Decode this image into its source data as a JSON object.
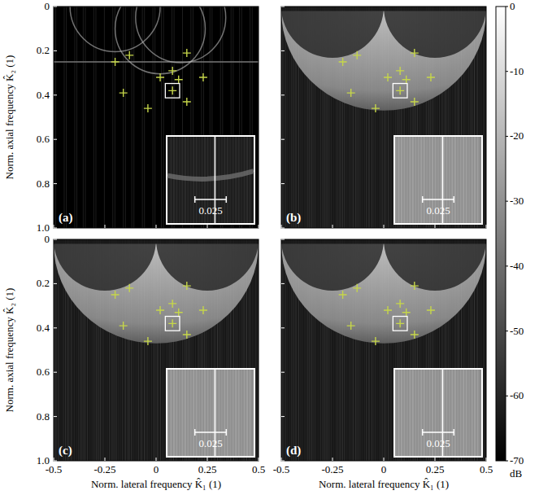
{
  "chart_data": [
    {
      "type": "scatter",
      "panel_label": "(a)",
      "y_label": "Norm. axial frequency K̂₂ (1)",
      "x": [
        -0.2,
        -0.13,
        -0.16,
        -0.04,
        0.02,
        0.08,
        0.08,
        0.15,
        0.15,
        0.23,
        0.11
      ],
      "y": [
        0.25,
        0.22,
        0.39,
        0.46,
        0.32,
        0.29,
        0.38,
        0.21,
        0.43,
        0.32,
        0.33
      ],
      "color": "#c6d64a",
      "marker": "plus",
      "xlim": [
        -0.5,
        0.5
      ],
      "ylim": [
        1,
        0
      ],
      "xticks": [
        -0.5,
        -0.25,
        0,
        0.25,
        0.5
      ],
      "yticks": [
        0,
        0.2,
        0.4,
        0.6,
        0.8,
        {
          "value": 1,
          "label": "1.0"
        }
      ],
      "tick_labels": "y",
      "inset": {
        "center": [
          0.08,
          0.38
        ],
        "width": 0.07,
        "scalebar": 0.025
      }
    },
    {
      "type": "scatter",
      "panel_label": "(b)",
      "x": [
        -0.2,
        -0.13,
        -0.16,
        -0.04,
        0.02,
        0.08,
        0.08,
        0.15,
        0.15,
        0.23,
        0.11
      ],
      "y": [
        0.25,
        0.22,
        0.39,
        0.46,
        0.32,
        0.29,
        0.38,
        0.21,
        0.43,
        0.32,
        0.33
      ],
      "color": "#c6d64a",
      "marker": "plus",
      "xlim": [
        -0.5,
        0.5
      ],
      "ylim": [
        1,
        0
      ],
      "xticks": [
        -0.5,
        -0.25,
        0,
        0.25,
        0.5
      ],
      "yticks": [
        0,
        0.2,
        0.4,
        0.6,
        0.8,
        {
          "value": 1,
          "label": "1.0"
        }
      ],
      "tick_labels": false,
      "inset": {
        "center": [
          0.08,
          0.38
        ],
        "width": 0.07,
        "scalebar": 0.025
      }
    },
    {
      "type": "scatter",
      "panel_label": "(c)",
      "x_label": "Norm. lateral frequency K̂₁ (1)",
      "y_label": "Norm. axial frequency K̂₂ (1)",
      "x": [
        -0.2,
        -0.13,
        -0.16,
        -0.04,
        0.02,
        0.08,
        0.08,
        0.15,
        0.15,
        0.23,
        0.11
      ],
      "y": [
        0.25,
        0.22,
        0.39,
        0.46,
        0.32,
        0.29,
        0.38,
        0.21,
        0.43,
        0.32,
        0.33
      ],
      "color": "#c6d64a",
      "marker": "plus",
      "xlim": [
        -0.5,
        0.5
      ],
      "ylim": [
        1,
        0
      ],
      "xticks": [
        -0.5,
        -0.25,
        0,
        0.25,
        0.5
      ],
      "yticks": [
        0,
        0.2,
        0.4,
        0.6,
        0.8,
        {
          "value": 1,
          "label": "1.0"
        }
      ],
      "tick_labels": true,
      "inset": {
        "center": [
          0.08,
          0.38
        ],
        "width": 0.07,
        "scalebar": 0.025
      }
    },
    {
      "type": "scatter",
      "panel_label": "(d)",
      "x_label": "Norm. lateral frequency K̂₁ (1)",
      "x": [
        -0.2,
        -0.13,
        -0.16,
        -0.04,
        0.02,
        0.08,
        0.08,
        0.15,
        0.15,
        0.23,
        0.11
      ],
      "y": [
        0.25,
        0.22,
        0.39,
        0.46,
        0.32,
        0.29,
        0.38,
        0.21,
        0.43,
        0.32,
        0.33
      ],
      "color": "#c6d64a",
      "marker": "plus",
      "xlim": [
        -0.5,
        0.5
      ],
      "ylim": [
        1,
        0
      ],
      "xticks": [
        -0.5,
        -0.25,
        0,
        0.25,
        0.5
      ],
      "yticks": [
        0,
        0.2,
        0.4,
        0.6,
        0.8,
        {
          "value": 1,
          "label": "1.0"
        }
      ],
      "tick_labels": "x",
      "inset": {
        "center": [
          0.08,
          0.38
        ],
        "width": 0.07,
        "scalebar": 0.025
      }
    }
  ],
  "colorbar": {
    "range": [
      -70,
      0
    ],
    "ticks": [
      0,
      -10,
      -20,
      -30,
      -40,
      -50,
      -60,
      -70
    ],
    "label": "dB"
  }
}
